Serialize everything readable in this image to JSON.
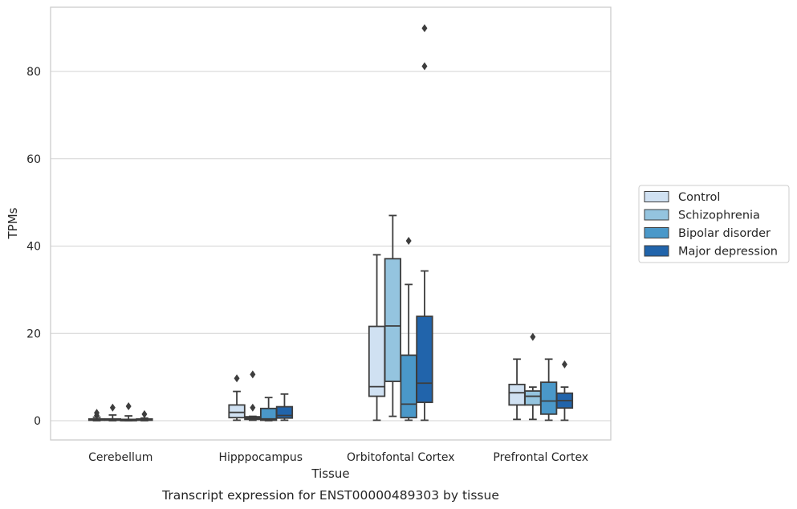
{
  "chart_data": {
    "type": "box",
    "caption": "Transcript expression for ENST00000489303 by tissue",
    "xlabel": "Tissue",
    "ylabel": "TPMs",
    "ylim": [
      -4.5,
      95.5
    ],
    "yticks": [
      0,
      20,
      40,
      60,
      80
    ],
    "grid": true,
    "legend_position": "right",
    "categories": [
      "Cerebellum",
      "Hipppocampus",
      "Orbitofontal Cortex",
      "Prefrontal Cortex"
    ],
    "series": [
      {
        "name": "Control",
        "color": "#d0e1f2",
        "boxes": [
          {
            "whislo": 0,
            "q1": 0.1,
            "med": 0.2,
            "q3": 0.4,
            "whishi": 0.8,
            "fliers": [
              1.2,
              1.8
            ]
          },
          {
            "whislo": 0.1,
            "q1": 0.7,
            "med": 1.9,
            "q3": 3.6,
            "whishi": 6.7,
            "fliers": [
              9.7
            ]
          },
          {
            "whislo": 0.1,
            "q1": 5.6,
            "med": 7.8,
            "q3": 21.6,
            "whishi": 38.0,
            "fliers": []
          },
          {
            "whislo": 0.3,
            "q1": 3.6,
            "med": 6.4,
            "q3": 8.3,
            "whishi": 14.1,
            "fliers": []
          }
        ]
      },
      {
        "name": "Schizophrenia",
        "color": "#94c4df",
        "boxes": [
          {
            "whislo": 0,
            "q1": 0.1,
            "med": 0.2,
            "q3": 0.4,
            "whishi": 1.3,
            "fliers": [
              3.0
            ]
          },
          {
            "whislo": 0.1,
            "q1": 0.3,
            "med": 0.6,
            "q3": 0.9,
            "whishi": 1.0,
            "fliers": [
              3.0,
              10.6
            ]
          },
          {
            "whislo": 1.0,
            "q1": 9.0,
            "med": 21.7,
            "q3": 37.1,
            "whishi": 47.0,
            "fliers": []
          },
          {
            "whislo": 0.3,
            "q1": 3.6,
            "med": 5.6,
            "q3": 6.8,
            "whishi": 7.7,
            "fliers": [
              19.2
            ]
          }
        ]
      },
      {
        "name": "Bipolar disorder",
        "color": "#4a98c9",
        "boxes": [
          {
            "whislo": 0,
            "q1": 0.0,
            "med": 0.1,
            "q3": 0.3,
            "whishi": 1.1,
            "fliers": [
              3.3
            ]
          },
          {
            "whislo": 0,
            "q1": 0.1,
            "med": 0.4,
            "q3": 2.8,
            "whishi": 5.3,
            "fliers": []
          },
          {
            "whislo": 0.1,
            "q1": 0.7,
            "med": 3.8,
            "q3": 15.0,
            "whishi": 31.2,
            "fliers": [
              41.2
            ]
          },
          {
            "whislo": 0.1,
            "q1": 1.5,
            "med": 4.5,
            "q3": 8.8,
            "whishi": 14.1,
            "fliers": []
          }
        ]
      },
      {
        "name": "Major depression",
        "color": "#2164ab",
        "boxes": [
          {
            "whislo": 0,
            "q1": 0.1,
            "med": 0.2,
            "q3": 0.4,
            "whishi": 0.6,
            "fliers": [
              1.5
            ]
          },
          {
            "whislo": 0.1,
            "q1": 0.6,
            "med": 1.2,
            "q3": 3.2,
            "whishi": 6.1,
            "fliers": []
          },
          {
            "whislo": 0.1,
            "q1": 4.2,
            "med": 8.6,
            "q3": 23.9,
            "whishi": 34.3,
            "fliers": [
              81.2,
              89.9
            ]
          },
          {
            "whislo": 0.1,
            "q1": 2.9,
            "med": 4.6,
            "q3": 6.3,
            "whishi": 7.7,
            "fliers": [
              12.9
            ]
          }
        ]
      }
    ]
  }
}
